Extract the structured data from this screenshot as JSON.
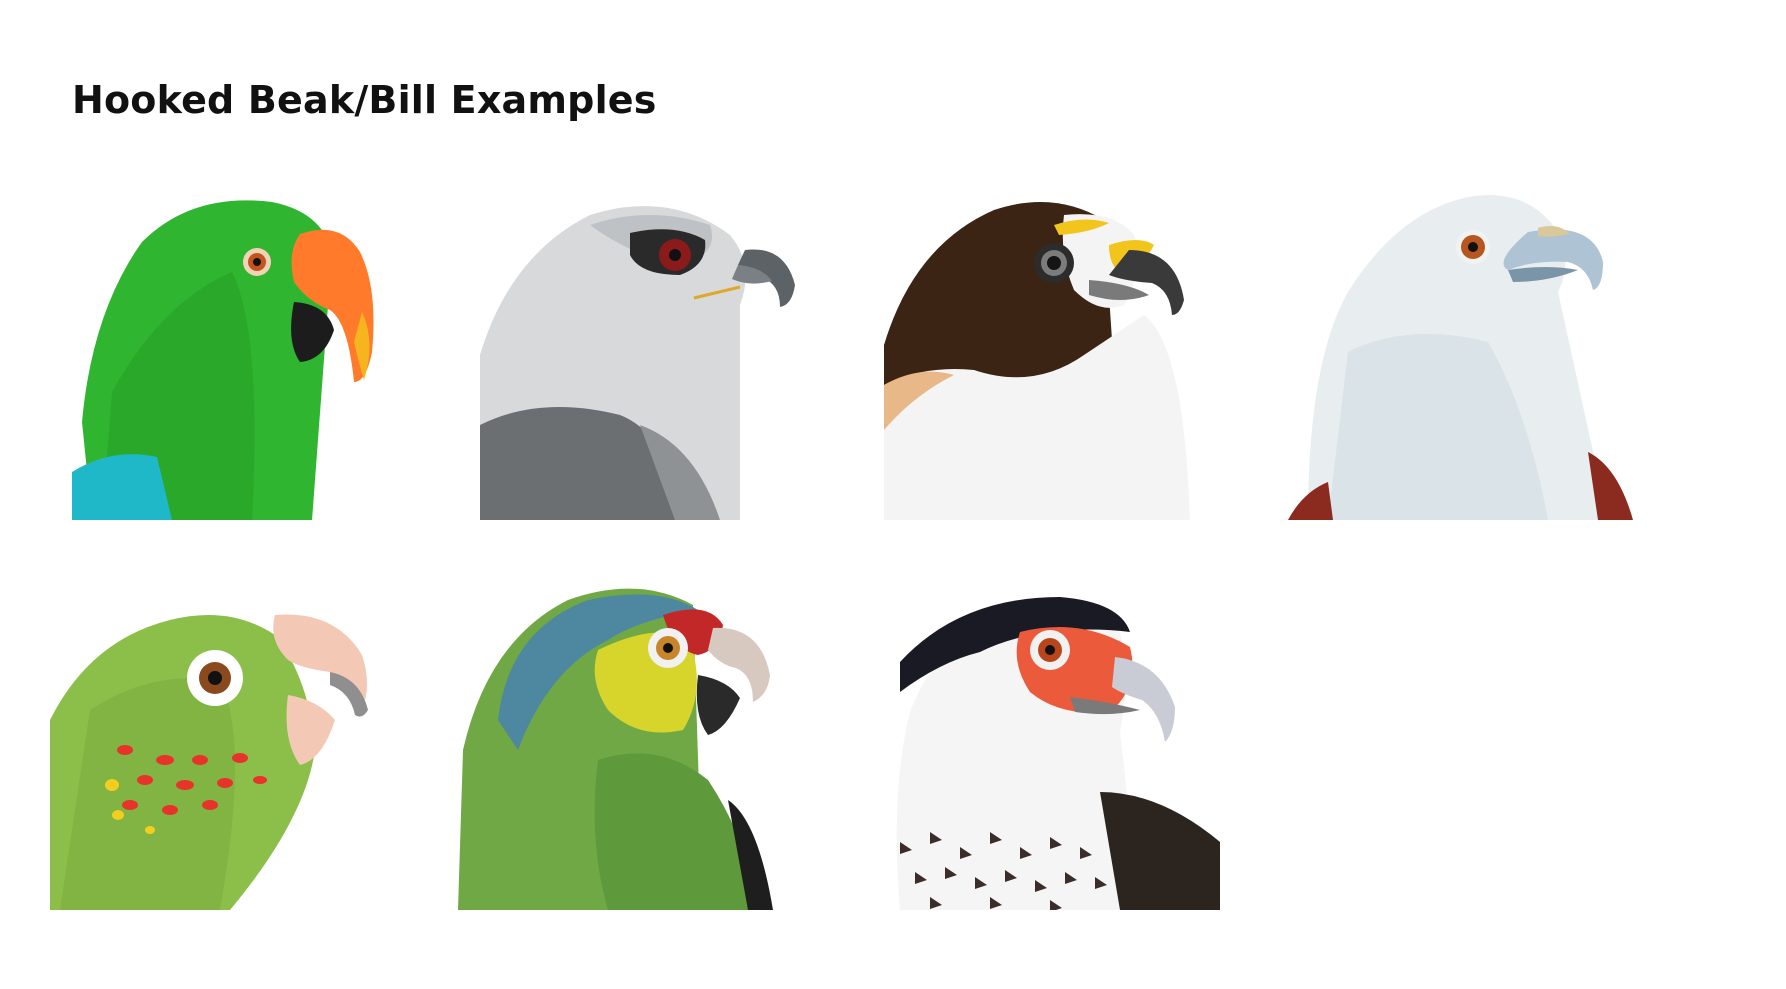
{
  "page": {
    "title": "Hooked Beak/Bill Examples"
  },
  "illustrations": [
    {
      "id": "green-parrot",
      "icon": "parrot-head-icon",
      "colors": {
        "body": "#2fb52f",
        "beak": "#ff7a2a",
        "accent": "#1fb8c9"
      }
    },
    {
      "id": "grey-kite",
      "icon": "kite-head-icon",
      "colors": {
        "body": "#d7d9da",
        "eye": "#8b1a1a"
      }
    },
    {
      "id": "brown-white-hawk",
      "icon": "hawk-head-icon",
      "colors": {
        "body": "#3b2414",
        "chest": "#f4f4f4",
        "cere": "#f2c51d"
      }
    },
    {
      "id": "white-kite",
      "icon": "kite-head-icon",
      "colors": {
        "body": "#e8edf0",
        "shoulder": "#8b2a1e"
      }
    },
    {
      "id": "green-scaly-parrot",
      "icon": "parrot-head-icon",
      "colors": {
        "body": "#8cbf4a",
        "spots": "#e8332a",
        "beak": "#f3c9b6"
      }
    },
    {
      "id": "amazon-parrot",
      "icon": "parrot-head-icon",
      "colors": {
        "body": "#6fa845",
        "face": "#d7d42c",
        "crown": "#c22828"
      }
    },
    {
      "id": "caracara",
      "icon": "caracara-head-icon",
      "colors": {
        "cap": "#1a1a24",
        "face": "#ec5a3c",
        "chest": "#f5f5f5"
      }
    }
  ]
}
